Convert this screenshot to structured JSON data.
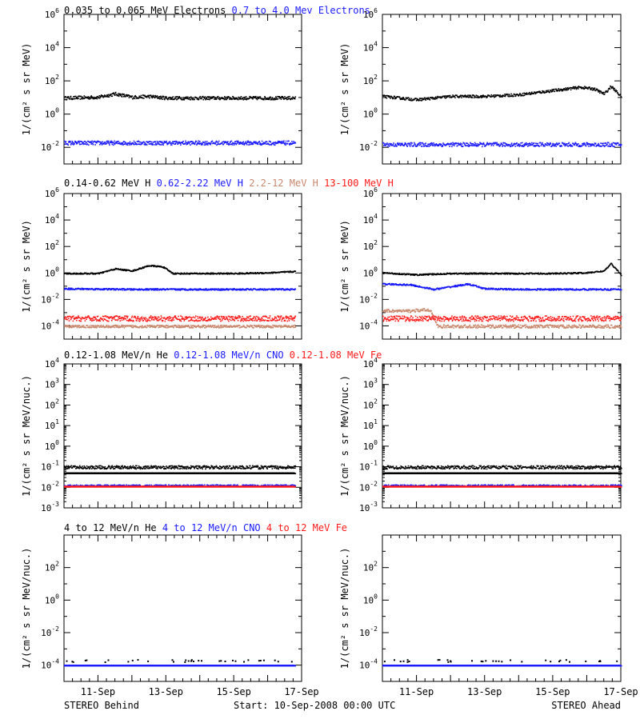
{
  "colors": {
    "black": "#000000",
    "blue": "#1a1aff",
    "tan": "#c8886e",
    "red": "#ff1a1a",
    "axis": "#000000"
  },
  "row_titles": [
    [
      {
        "text": "0.035 to 0.065 MeV Electrons",
        "color": "#000000"
      },
      {
        "text": "0.7 to 4.0 Mev Electrons",
        "color": "#1a1aff"
      }
    ],
    [
      {
        "text": "0.14-0.62 MeV H",
        "color": "#000000"
      },
      {
        "text": "0.62-2.22 MeV H",
        "color": "#1a1aff"
      },
      {
        "text": "2.2-12 MeV H",
        "color": "#c8886e"
      },
      {
        "text": "13-100 MeV H",
        "color": "#ff1a1a"
      }
    ],
    [
      {
        "text": "0.12-1.08 MeV/n He",
        "color": "#000000"
      },
      {
        "text": "0.12-1.08 MeV/n CNO",
        "color": "#1a1aff"
      },
      {
        "text": "0.12-1.08 MeV Fe",
        "color": "#ff1a1a"
      }
    ],
    [
      {
        "text": "4 to 12 MeV/n He",
        "color": "#000000"
      },
      {
        "text": "4 to 12 MeV/n CNO",
        "color": "#1a1aff"
      },
      {
        "text": "4 to 12 MeV Fe",
        "color": "#ff1a1a"
      }
    ]
  ],
  "y_labels": [
    "1/(cm² s sr MeV)",
    "1/(cm² s sr MeV)",
    "1/(cm² s sr MeV/nuc.)",
    "1/(cm² s sr MeV/nuc.)"
  ],
  "x_tick_labels": [
    "11-Sep",
    "13-Sep",
    "15-Sep",
    "17-Sep"
  ],
  "x_tick_days": [
    11,
    13,
    15,
    17
  ],
  "footer": {
    "left": "STEREO Behind",
    "center": "Start: 10-Sep-2008 00:00 UTC",
    "right": "STEREO Ahead"
  },
  "chart_data": [
    {
      "type": "scatter",
      "row": 0,
      "col": 0,
      "spacecraft": "STEREO Behind",
      "x_unit": "day of Sep 2008",
      "xlim": [
        10,
        17
      ],
      "yscale": "log",
      "ylim_log10": [
        -3,
        6
      ],
      "yticks_log10": [
        -2,
        0,
        2,
        4,
        6
      ],
      "series": [
        {
          "color": "#000000",
          "scatter": 0.1,
          "x": [
            10,
            11,
            11.5,
            12,
            12.5,
            13,
            14,
            15,
            16,
            16.8
          ],
          "log10_y": [
            1.0,
            1.05,
            1.25,
            1.05,
            1.1,
            1.0,
            1.0,
            1.0,
            1.0,
            1.0
          ]
        },
        {
          "color": "#1a1aff",
          "scatter": 0.12,
          "x": [
            10,
            12,
            14,
            16,
            16.8
          ],
          "log10_y": [
            -1.7,
            -1.7,
            -1.7,
            -1.7,
            -1.7
          ]
        }
      ]
    },
    {
      "type": "scatter",
      "row": 0,
      "col": 1,
      "spacecraft": "STEREO Ahead",
      "x_unit": "day of Sep 2008",
      "xlim": [
        10,
        17
      ],
      "yscale": "log",
      "ylim_log10": [
        -3,
        6
      ],
      "yticks_log10": [
        -2,
        0,
        2,
        4,
        6
      ],
      "series": [
        {
          "color": "#000000",
          "scatter": 0.08,
          "x": [
            10,
            11,
            12,
            13,
            14,
            15,
            15.8,
            16.2,
            16.5,
            16.7,
            17
          ],
          "log10_y": [
            1.1,
            0.9,
            1.1,
            1.1,
            1.2,
            1.45,
            1.65,
            1.55,
            1.25,
            1.7,
            1.1
          ]
        },
        {
          "color": "#1a1aff",
          "scatter": 0.12,
          "x": [
            10,
            12,
            14,
            16,
            17
          ],
          "log10_y": [
            -1.8,
            -1.8,
            -1.8,
            -1.8,
            -1.8
          ]
        }
      ]
    },
    {
      "type": "scatter",
      "row": 1,
      "col": 0,
      "spacecraft": "STEREO Behind",
      "x_unit": "day of Sep 2008",
      "xlim": [
        10,
        17
      ],
      "yscale": "log",
      "ylim_log10": [
        -5,
        6
      ],
      "yticks_log10": [
        -4,
        -2,
        0,
        2,
        4,
        6
      ],
      "series": [
        {
          "color": "#000000",
          "scatter": 0.05,
          "x": [
            10,
            11,
            11.5,
            12,
            12.5,
            12.9,
            13.2,
            14,
            15,
            16,
            16.8
          ],
          "log10_y": [
            0.0,
            0.0,
            0.35,
            0.2,
            0.6,
            0.5,
            0.0,
            0.0,
            0.0,
            0.05,
            0.15
          ]
        },
        {
          "color": "#1a1aff",
          "scatter": 0.06,
          "x": [
            10,
            12,
            14,
            16,
            16.8
          ],
          "log10_y": [
            -1.15,
            -1.2,
            -1.2,
            -1.2,
            -1.2
          ]
        },
        {
          "color": "#c8886e",
          "scatter": 0.1,
          "x": [
            10,
            16.8
          ],
          "log10_y": [
            -4.0,
            -4.0
          ]
        },
        {
          "color": "#ff1a1a",
          "scatter": 0.2,
          "x": [
            10,
            16.8
          ],
          "log10_y": [
            -3.4,
            -3.4
          ]
        }
      ]
    },
    {
      "type": "scatter",
      "row": 1,
      "col": 1,
      "spacecraft": "STEREO Ahead",
      "x_unit": "day of Sep 2008",
      "xlim": [
        10,
        17
      ],
      "yscale": "log",
      "ylim_log10": [
        -5,
        6
      ],
      "yticks_log10": [
        -4,
        -2,
        0,
        2,
        4,
        6
      ],
      "series": [
        {
          "color": "#000000",
          "scatter": 0.05,
          "x": [
            10,
            11,
            12,
            13,
            14,
            15,
            16,
            16.5,
            16.7,
            17
          ],
          "log10_y": [
            0.05,
            -0.1,
            0.0,
            0.0,
            0.0,
            0.0,
            0.05,
            0.2,
            0.75,
            -0.1
          ]
        },
        {
          "color": "#1a1aff",
          "scatter": 0.06,
          "x": [
            10,
            10.8,
            11.5,
            12.5,
            13,
            14,
            15,
            16,
            17
          ],
          "log10_y": [
            -0.8,
            -0.85,
            -1.2,
            -0.8,
            -1.15,
            -1.2,
            -1.2,
            -1.2,
            -1.2
          ]
        },
        {
          "color": "#c8886e",
          "scatter": 0.12,
          "x": [
            10,
            10.6,
            11.4,
            11.6,
            17
          ],
          "log10_y": [
            -2.8,
            -2.85,
            -2.75,
            -4.0,
            -4.0
          ]
        },
        {
          "color": "#ff1a1a",
          "scatter": 0.2,
          "x": [
            10,
            17
          ],
          "log10_y": [
            -3.4,
            -3.4
          ]
        }
      ]
    },
    {
      "type": "scatter",
      "row": 2,
      "col": 0,
      "spacecraft": "STEREO Behind",
      "x_unit": "day of Sep 2008",
      "xlim": [
        10,
        17
      ],
      "yscale": "log",
      "ylim_log10": [
        -3,
        4
      ],
      "yticks_log10": [
        -3,
        -2,
        -1,
        0,
        1,
        2,
        3,
        4
      ],
      "series": [
        {
          "color": "#000000",
          "scatter": 0.08,
          "x": [
            10,
            16.8
          ],
          "log10_y": [
            -1.0,
            -1.0
          ]
        },
        {
          "color": "#000000",
          "scatter": 0.0,
          "x": [
            10,
            16.8
          ],
          "log10_y": [
            -1.3,
            -1.3
          ]
        },
        {
          "color": "#1a1aff",
          "scatter": 0.05,
          "x": [
            10,
            16.8
          ],
          "log10_y": [
            -1.9,
            -1.9
          ]
        },
        {
          "color": "#ff1a1a",
          "scatter": 0.0,
          "x": [
            10,
            16.8
          ],
          "log10_y": [
            -1.95,
            -1.95
          ]
        }
      ]
    },
    {
      "type": "scatter",
      "row": 2,
      "col": 1,
      "spacecraft": "STEREO Ahead",
      "x_unit": "day of Sep 2008",
      "xlim": [
        10,
        17
      ],
      "yscale": "log",
      "ylim_log10": [
        -3,
        4
      ],
      "yticks_log10": [
        -3,
        -2,
        -1,
        0,
        1,
        2,
        3,
        4
      ],
      "series": [
        {
          "color": "#000000",
          "scatter": 0.08,
          "x": [
            10,
            17
          ],
          "log10_y": [
            -1.0,
            -1.0
          ]
        },
        {
          "color": "#000000",
          "scatter": 0.0,
          "x": [
            10,
            17
          ],
          "log10_y": [
            -1.3,
            -1.3
          ]
        },
        {
          "color": "#1a1aff",
          "scatter": 0.05,
          "x": [
            10,
            17
          ],
          "log10_y": [
            -1.9,
            -1.9
          ]
        },
        {
          "color": "#ff1a1a",
          "scatter": 0.0,
          "x": [
            10,
            17
          ],
          "log10_y": [
            -1.95,
            -1.95
          ]
        }
      ]
    },
    {
      "type": "scatter",
      "row": 3,
      "col": 0,
      "spacecraft": "STEREO Behind",
      "x_unit": "day of Sep 2008",
      "xlim": [
        10,
        17
      ],
      "yscale": "log",
      "ylim_log10": [
        -5,
        4
      ],
      "yticks_log10": [
        -4,
        -2,
        0,
        2
      ],
      "series": [
        {
          "color": "#000000",
          "scatter": 0.0,
          "sparse": true,
          "x": [
            10,
            16.8
          ],
          "log10_y": [
            -3.7,
            -3.7
          ]
        },
        {
          "color": "#1a1aff",
          "scatter": 0.0,
          "x": [
            10,
            16.8
          ],
          "log10_y": [
            -4.0,
            -4.0
          ]
        }
      ]
    },
    {
      "type": "scatter",
      "row": 3,
      "col": 1,
      "spacecraft": "STEREO Ahead",
      "x_unit": "day of Sep 2008",
      "xlim": [
        10,
        17
      ],
      "yscale": "log",
      "ylim_log10": [
        -5,
        4
      ],
      "yticks_log10": [
        -4,
        -2,
        0,
        2
      ],
      "series": [
        {
          "color": "#000000",
          "scatter": 0.0,
          "sparse": true,
          "x": [
            10,
            17
          ],
          "log10_y": [
            -3.7,
            -3.7
          ]
        },
        {
          "color": "#1a1aff",
          "scatter": 0.0,
          "x": [
            10,
            17
          ],
          "log10_y": [
            -4.0,
            -4.0
          ]
        }
      ]
    }
  ]
}
